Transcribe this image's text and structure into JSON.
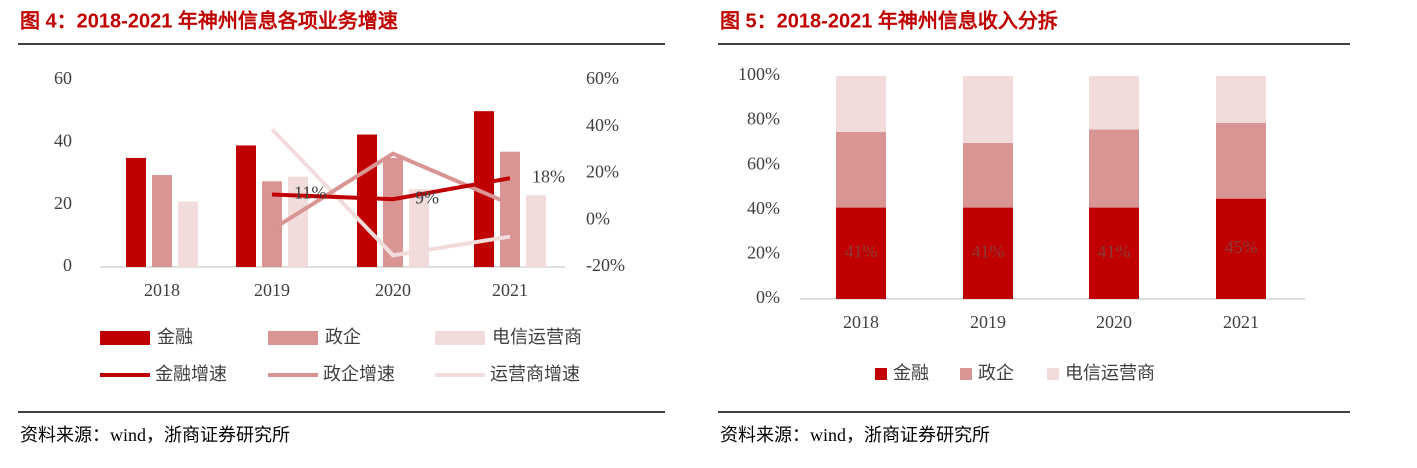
{
  "chart_data": [
    {
      "type": "bar",
      "title": "图 4：2018-2021 年神州信息各项业务增速",
      "source": "资料来源：wind，浙商证券研究所",
      "categories": [
        "2018",
        "2019",
        "2020",
        "2021"
      ],
      "ylim": [
        0,
        60
      ],
      "yticks": [
        0,
        20,
        40,
        60
      ],
      "y2lim": [
        -20,
        60
      ],
      "y2ticks": [
        {
          "value": -20,
          "label": "-20%"
        },
        {
          "value": 0,
          "label": "0%"
        },
        {
          "value": 20,
          "label": "20%"
        },
        {
          "value": 40,
          "label": "40%"
        },
        {
          "value": 60,
          "label": "60%"
        }
      ],
      "series": [
        {
          "name": "金融",
          "type": "bar",
          "color": "#c00000",
          "values": [
            35,
            39,
            42.5,
            50
          ]
        },
        {
          "name": "政企",
          "type": "bar",
          "color": "#d99594",
          "values": [
            29.5,
            27.5,
            35,
            37
          ]
        },
        {
          "name": "电信运营商",
          "type": "bar",
          "color": "#f2dcdb",
          "values": [
            21,
            29,
            25,
            23
          ]
        },
        {
          "name": "金融增速",
          "type": "line",
          "axis": "y2",
          "color": "#c00000",
          "values": [
            null,
            11,
            9,
            18
          ],
          "value_labels": [
            null,
            "11%",
            "9%",
            "18%"
          ]
        },
        {
          "name": "政企增速",
          "type": "line",
          "axis": "y2",
          "color": "#d99594",
          "values": [
            null,
            -4,
            28.5,
            7
          ]
        },
        {
          "name": "运营商增速",
          "type": "line",
          "axis": "y2",
          "color": "#f2dcdb",
          "values": [
            null,
            39,
            -15,
            -7
          ]
        }
      ]
    },
    {
      "type": "stacked_bar",
      "title": "图 5：2018-2021 年神州信息收入分拆",
      "source": "资料来源：wind，浙商证券研究所",
      "categories": [
        "2018",
        "2019",
        "2020",
        "2021"
      ],
      "ylim": [
        0,
        100
      ],
      "yticks": [
        {
          "value": 0,
          "label": "0%"
        },
        {
          "value": 20,
          "label": "20%"
        },
        {
          "value": 40,
          "label": "40%"
        },
        {
          "value": 60,
          "label": "60%"
        },
        {
          "value": 80,
          "label": "80%"
        },
        {
          "value": 100,
          "label": "100%"
        }
      ],
      "series": [
        {
          "name": "金融",
          "color": "#c00000",
          "values": [
            41,
            41,
            41,
            45
          ],
          "value_labels": [
            "41%",
            "41%",
            "41%",
            "45%"
          ]
        },
        {
          "name": "政企",
          "color": "#d99594",
          "values": [
            34,
            29,
            35,
            34
          ]
        },
        {
          "name": "电信运营商",
          "color": "#f2dcdb",
          "values": [
            25,
            30,
            24,
            21
          ]
        }
      ]
    }
  ]
}
